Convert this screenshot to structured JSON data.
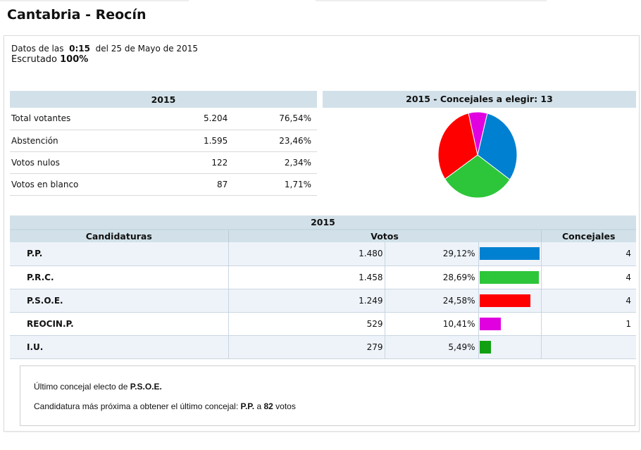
{
  "page": {
    "title": "Cantabria - Reocín"
  },
  "meta": {
    "data_prefix": "Datos de las",
    "time": "0:15",
    "date_text": "del 25 de Mayo de 2015",
    "scrutiny_label": "Escrutado",
    "scrutiny_value": "100%"
  },
  "summary": {
    "header": "2015",
    "rows": [
      {
        "label": "Total votantes",
        "value": "5.204",
        "pct": "76,54%"
      },
      {
        "label": "Abstención",
        "value": "1.595",
        "pct": "23,46%"
      },
      {
        "label": "Votos nulos",
        "value": "122",
        "pct": "2,34%"
      },
      {
        "label": "Votos en blanco",
        "value": "87",
        "pct": "1,71%"
      }
    ]
  },
  "pie": {
    "header": "2015 - Concejales a elegir: 13"
  },
  "results": {
    "year": "2015",
    "columns": {
      "party": "Candidaturas",
      "votes": "Votos",
      "seats": "Concejales"
    },
    "rows": [
      {
        "party": "P.P.",
        "votes": "1.480",
        "pct": "29,12%",
        "seats": "4",
        "color": "#0080d0"
      },
      {
        "party": "P.R.C.",
        "votes": "1.458",
        "pct": "28,69%",
        "seats": "4",
        "color": "#2dc63a"
      },
      {
        "party": "P.S.O.E.",
        "votes": "1.249",
        "pct": "24,58%",
        "seats": "4",
        "color": "#ff0000"
      },
      {
        "party": "REOCIN.P.",
        "votes": "529",
        "pct": "10,41%",
        "seats": "1",
        "color": "#e000e0"
      },
      {
        "party": "I.U.",
        "votes": "279",
        "pct": "5,49%",
        "seats": "",
        "color": "#12a012"
      }
    ]
  },
  "note": {
    "line1_prefix": "Último concejal electo de",
    "line1_party": "P.S.O.E.",
    "line2_prefix": "Candidatura más próxima a obtener el último concejal:",
    "line2_party": "P.P.",
    "line2_mid": "a",
    "line2_votes": "82",
    "line2_suffix": "votos"
  },
  "chart_data": [
    {
      "type": "pie",
      "title": "2015 - Concejales a elegir: 13",
      "categories": [
        "P.P.",
        "P.R.C.",
        "P.S.O.E.",
        "REOCIN.P."
      ],
      "values": [
        4,
        4,
        4,
        1
      ],
      "colors": [
        "#0080d0",
        "#2dc63a",
        "#ff0000",
        "#e000e0"
      ]
    },
    {
      "type": "bar",
      "title": "2015",
      "categories": [
        "P.P.",
        "P.R.C.",
        "P.S.O.E.",
        "REOCIN.P.",
        "I.U."
      ],
      "values": [
        29.12,
        28.69,
        24.58,
        10.41,
        5.49
      ],
      "votes": [
        1480,
        1458,
        1249,
        529,
        279
      ],
      "seats": [
        4,
        4,
        4,
        1,
        0
      ],
      "ylabel": "% Votos",
      "colors": [
        "#0080d0",
        "#2dc63a",
        "#ff0000",
        "#e000e0",
        "#12a012"
      ]
    }
  ]
}
